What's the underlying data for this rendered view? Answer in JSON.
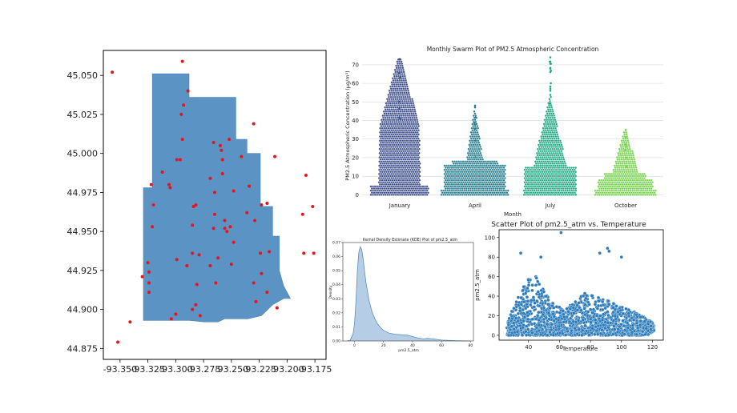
{
  "chart_data": [
    {
      "type": "scatter",
      "subtype": "map",
      "title": "",
      "xlabel": "",
      "ylabel": "",
      "xlim": [
        -93.365,
        -93.165
      ],
      "ylim": [
        44.868,
        45.066
      ],
      "x_ticks": [
        "-93.350",
        "-93.325",
        "-93.300",
        "-93.275",
        "-93.250",
        "-93.225",
        "-93.200",
        "-93.175"
      ],
      "x_tick_values": [
        -93.35,
        -93.325,
        -93.3,
        -93.275,
        -93.25,
        -93.225,
        -93.2,
        -93.175
      ],
      "y_ticks": [
        "44.875",
        "44.900",
        "44.925",
        "44.950",
        "44.975",
        "45.000",
        "45.025",
        "45.050"
      ],
      "y_tick_values": [
        44.875,
        44.9,
        44.925,
        44.95,
        44.975,
        45.0,
        45.025,
        45.05
      ],
      "region_color": "#5b93c5",
      "point_color": "#e8141b",
      "region_outline": [
        [
          -93.329,
          44.978
        ],
        [
          -93.321,
          44.978
        ],
        [
          -93.321,
          45.051
        ],
        [
          -93.288,
          45.051
        ],
        [
          -93.288,
          45.036
        ],
        [
          -93.246,
          45.036
        ],
        [
          -93.246,
          45.009
        ],
        [
          -93.236,
          45.009
        ],
        [
          -93.236,
          45.0
        ],
        [
          -93.224,
          45.0
        ],
        [
          -93.224,
          44.966
        ],
        [
          -93.213,
          44.966
        ],
        [
          -93.213,
          44.947
        ],
        [
          -93.207,
          44.947
        ],
        [
          -93.207,
          44.925
        ],
        [
          -93.203,
          44.915
        ],
        [
          -93.197,
          44.907
        ],
        [
          -93.203,
          44.907
        ],
        [
          -93.213,
          44.903
        ],
        [
          -93.223,
          44.896
        ],
        [
          -93.235,
          44.894
        ],
        [
          -93.256,
          44.894
        ],
        [
          -93.262,
          44.892
        ],
        [
          -93.274,
          44.892
        ],
        [
          -93.288,
          44.893
        ],
        [
          -93.304,
          44.893
        ],
        [
          -93.329,
          44.893
        ]
      ],
      "points": [
        [
          -93.357,
          45.052
        ],
        [
          -93.294,
          45.059
        ],
        [
          -93.289,
          45.04
        ],
        [
          -93.293,
          45.031
        ],
        [
          -93.295,
          45.025
        ],
        [
          -93.23,
          45.019
        ],
        [
          -93.294,
          45.009
        ],
        [
          -93.266,
          45.007
        ],
        [
          -93.26,
          45.005
        ],
        [
          -93.259,
          45.002
        ],
        [
          -93.252,
          45.009
        ],
        [
          -93.299,
          44.996
        ],
        [
          -93.296,
          44.996
        ],
        [
          -93.258,
          44.996
        ],
        [
          -93.241,
          44.998
        ],
        [
          -93.211,
          44.998
        ],
        [
          -93.312,
          44.988
        ],
        [
          -93.258,
          44.987
        ],
        [
          -93.183,
          44.986
        ],
        [
          -93.269,
          44.984
        ],
        [
          -93.322,
          44.98
        ],
        [
          -93.306,
          44.98
        ],
        [
          -93.305,
          44.978
        ],
        [
          -93.234,
          44.979
        ],
        [
          -93.248,
          44.976
        ],
        [
          -93.265,
          44.975
        ],
        [
          -93.32,
          44.967
        ],
        [
          -93.284,
          44.966
        ],
        [
          -93.282,
          44.967
        ],
        [
          -93.223,
          44.967
        ],
        [
          -93.218,
          44.968
        ],
        [
          -93.177,
          44.966
        ],
        [
          -93.236,
          44.962
        ],
        [
          -93.265,
          44.961
        ],
        [
          -93.186,
          44.961
        ],
        [
          -93.256,
          44.957
        ],
        [
          -93.229,
          44.957
        ],
        [
          -93.285,
          44.954
        ],
        [
          -93.251,
          44.953
        ],
        [
          -93.321,
          44.953
        ],
        [
          -93.266,
          44.952
        ],
        [
          -93.254,
          44.95
        ],
        [
          -93.256,
          44.952
        ],
        [
          -93.248,
          44.943
        ],
        [
          -93.224,
          44.936
        ],
        [
          -93.216,
          44.937
        ],
        [
          -93.285,
          44.936
        ],
        [
          -93.279,
          44.935
        ],
        [
          -93.262,
          44.933
        ],
        [
          -93.299,
          44.932
        ],
        [
          -93.325,
          44.93
        ],
        [
          -93.29,
          44.928
        ],
        [
          -93.269,
          44.928
        ],
        [
          -93.25,
          44.929
        ],
        [
          -93.324,
          44.924
        ],
        [
          -93.33,
          44.921
        ],
        [
          -93.324,
          44.917
        ],
        [
          -93.185,
          44.936
        ],
        [
          -93.176,
          44.936
        ],
        [
          -93.223,
          44.923
        ],
        [
          -93.281,
          44.916
        ],
        [
          -93.264,
          44.917
        ],
        [
          -93.23,
          44.917
        ],
        [
          -93.218,
          44.911
        ],
        [
          -93.324,
          44.911
        ],
        [
          -93.228,
          44.905
        ],
        [
          -93.282,
          44.903
        ],
        [
          -93.209,
          44.901
        ],
        [
          -93.3,
          44.897
        ],
        [
          -93.285,
          44.9
        ],
        [
          -93.278,
          44.896
        ],
        [
          -93.304,
          44.894
        ],
        [
          -93.341,
          44.892
        ],
        [
          -93.352,
          44.879
        ]
      ]
    },
    {
      "type": "swarm",
      "title": "Monthly Swarm Plot of PM2.5 Atmospheric Concentration",
      "xlabel": "Month",
      "ylabel": "PM2.5 Atmospheric Concentration (μg/m³)",
      "categories": [
        "January",
        "April",
        "July",
        "October"
      ],
      "colors": [
        "#3d4e8a",
        "#287e8e",
        "#22a884",
        "#79d151"
      ],
      "ylim": [
        -2,
        76
      ],
      "y_ticks": [
        0,
        10,
        20,
        30,
        40,
        50,
        60,
        70
      ],
      "grid": true,
      "summary": [
        {
          "category": "January",
          "min": 0,
          "max": 73,
          "dense_top": 38
        },
        {
          "category": "April",
          "min": 0,
          "max": 48,
          "dense_top": 18
        },
        {
          "category": "July",
          "min": 0,
          "max": 74,
          "dense_top": 30
        },
        {
          "category": "October",
          "min": 0,
          "max": 35,
          "dense_top": 12
        }
      ]
    },
    {
      "type": "area",
      "subtype": "kde",
      "title": "Kernel Density Estimate (KDE) Plot of pm2.5_atm",
      "xlabel": "pm2.5_atm",
      "ylabel": "Density",
      "xlim": [
        -8,
        82
      ],
      "ylim": [
        0,
        0.07
      ],
      "x_ticks": [
        0,
        20,
        40,
        60,
        80
      ],
      "y_ticks": [
        "0.00",
        "0.01",
        "0.02",
        "0.03",
        "0.04",
        "0.05",
        "0.06",
        "0.07"
      ],
      "y_tick_values": [
        0,
        0.01,
        0.02,
        0.03,
        0.04,
        0.05,
        0.06,
        0.07
      ],
      "color": "#a9c6e0",
      "line_color": "#5a8fc3",
      "x": [
        -5,
        -3,
        -1,
        0,
        1,
        2,
        3,
        4,
        5,
        6,
        7,
        8,
        10,
        12,
        14,
        16,
        18,
        20,
        24,
        28,
        32,
        36,
        40,
        44,
        48,
        50,
        52,
        56,
        60,
        70,
        80
      ],
      "y": [
        0,
        0.0005,
        0.005,
        0.012,
        0.028,
        0.05,
        0.063,
        0.067,
        0.065,
        0.058,
        0.049,
        0.041,
        0.029,
        0.021,
        0.016,
        0.012,
        0.0095,
        0.0075,
        0.0055,
        0.0048,
        0.0045,
        0.0042,
        0.0032,
        0.002,
        0.0015,
        0.0018,
        0.0017,
        0.0012,
        0.0006,
        0.0002,
        0
      ]
    },
    {
      "type": "scatter",
      "title": "Scatter Plot of pm2.5_atm vs. Temperature",
      "xlabel": "Temperature",
      "ylabel": "pm2.5_atm",
      "xlim": [
        21,
        127
      ],
      "ylim": [
        -5,
        108
      ],
      "x_ticks": [
        40,
        60,
        80,
        100,
        120
      ],
      "y_ticks": [
        0,
        20,
        40,
        60,
        80,
        100
      ],
      "color": "#2b7bba",
      "highlights": [
        [
          61,
          105
        ],
        [
          91,
          89
        ],
        [
          92,
          86
        ],
        [
          100,
          80
        ],
        [
          86,
          84
        ],
        [
          35,
          84
        ],
        [
          48,
          80
        ]
      ],
      "density_envelope": [
        [
          26,
          0,
          14
        ],
        [
          30,
          0,
          28
        ],
        [
          34,
          0,
          42
        ],
        [
          38,
          0,
          54
        ],
        [
          42,
          0,
          62
        ],
        [
          46,
          0,
          60
        ],
        [
          50,
          0,
          46
        ],
        [
          54,
          0,
          36
        ],
        [
          58,
          0,
          30
        ],
        [
          62,
          0,
          28
        ],
        [
          66,
          0,
          30
        ],
        [
          70,
          0,
          34
        ],
        [
          74,
          0,
          40
        ],
        [
          78,
          0,
          46
        ],
        [
          82,
          0,
          42
        ],
        [
          86,
          0,
          38
        ],
        [
          90,
          0,
          36
        ],
        [
          94,
          0,
          34
        ],
        [
          98,
          0,
          30
        ],
        [
          102,
          0,
          28
        ],
        [
          106,
          0,
          26
        ],
        [
          110,
          0,
          24
        ],
        [
          114,
          0,
          20
        ],
        [
          118,
          1,
          16
        ],
        [
          121,
          5,
          12
        ]
      ]
    }
  ]
}
